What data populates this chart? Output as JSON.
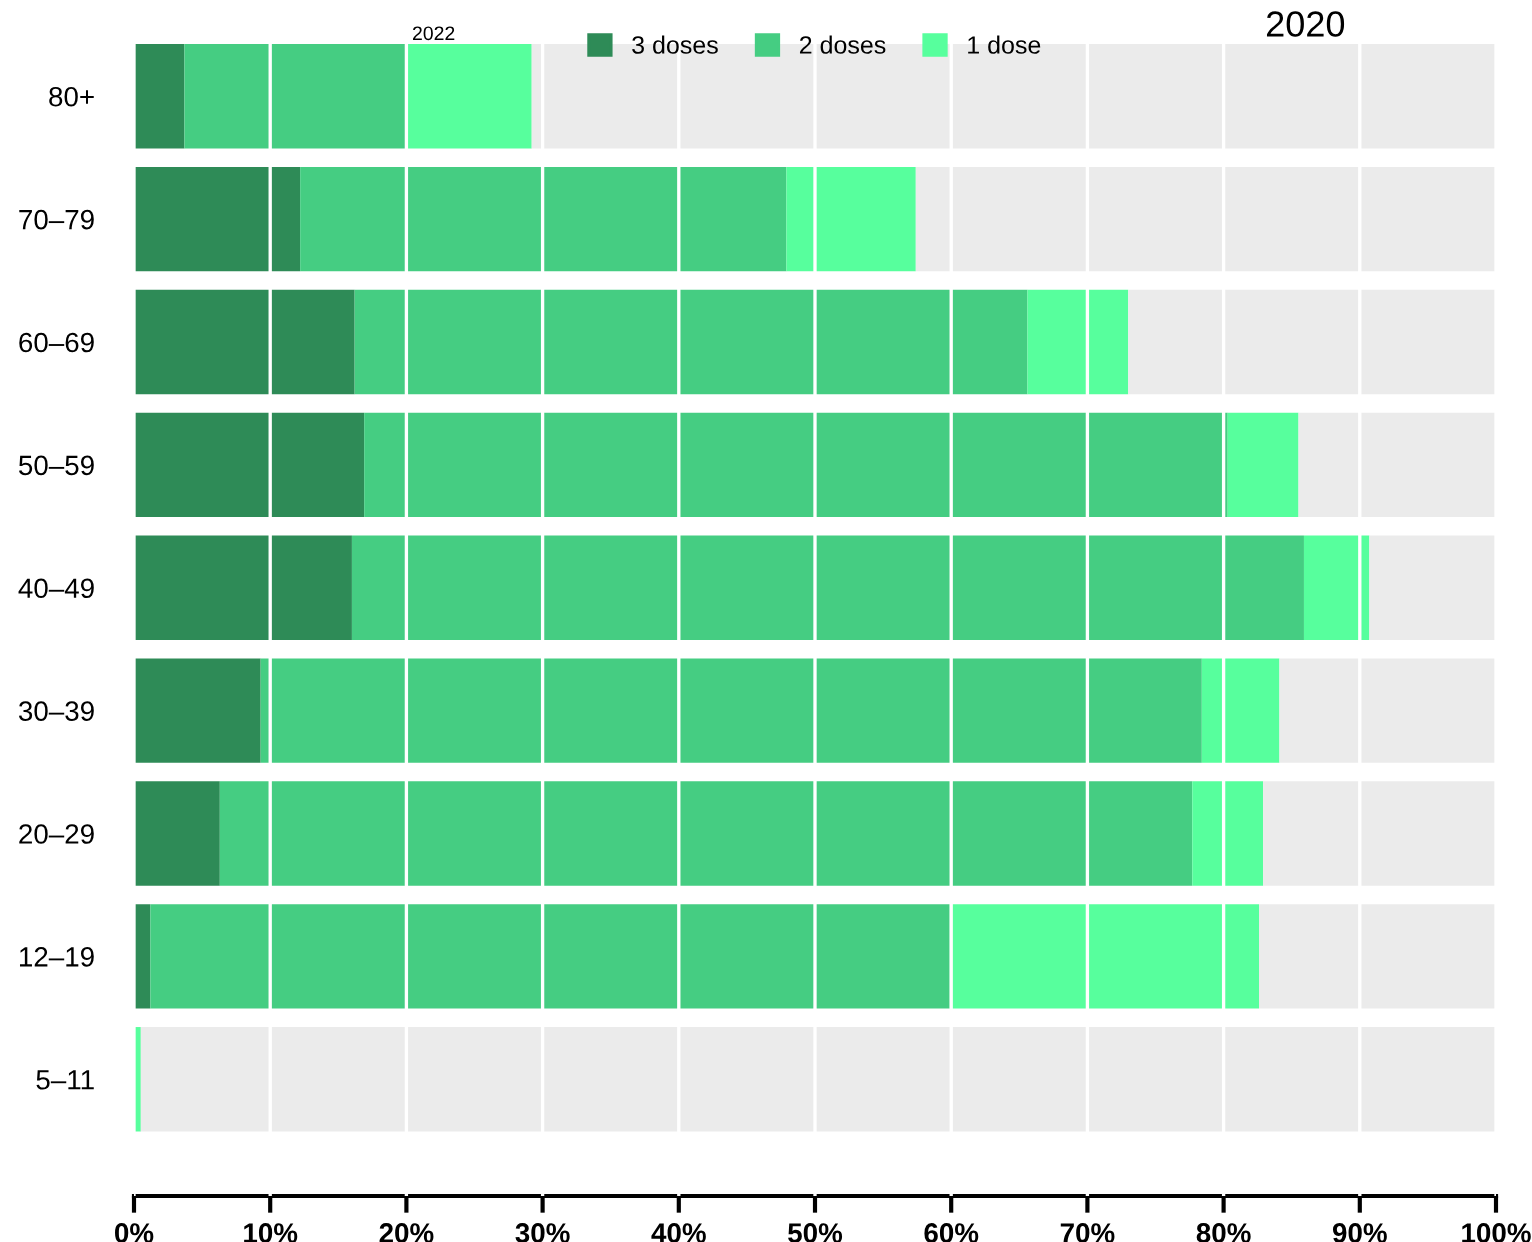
{
  "chart_data": {
    "type": "bar",
    "orientation": "horizontal",
    "stacked": true,
    "categories": [
      "80+",
      "70–79",
      "60–69",
      "50–59",
      "40–49",
      "30–39",
      "20–29",
      "12–19",
      "5–11"
    ],
    "series": [
      {
        "name": "3 doses",
        "color": "#2e8b57",
        "values": [
          3.7,
          12.2,
          16.2,
          16.9,
          16.0,
          9.3,
          6.3,
          1.2,
          0
        ]
      },
      {
        "name": "2 doses",
        "color": "#45cd82",
        "values": [
          16.3,
          35.7,
          49.4,
          63.4,
          69.9,
          69.1,
          71.4,
          58.7,
          0
        ]
      },
      {
        "name": "1 dose",
        "color": "#57ff9d",
        "values": [
          9.2,
          9.5,
          7.4,
          5.2,
          4.8,
          5.7,
          5.2,
          22.7,
          0.5
        ]
      },
      {
        "color": "#ebebeb",
        "values": [
          70.8,
          42.6,
          27.0,
          14.5,
          9.3,
          15.9,
          17.1,
          17.4,
          99.5
        ]
      }
    ],
    "xlim": [
      0,
      100
    ],
    "xticks": [
      {
        "value": 0,
        "label": "0%"
      },
      {
        "value": 10,
        "label": "10%"
      },
      {
        "value": 20,
        "label": "20%"
      },
      {
        "value": 30,
        "label": "30%"
      },
      {
        "value": 40,
        "label": "40%"
      },
      {
        "value": 50,
        "label": "50%"
      },
      {
        "value": 60,
        "label": "60%"
      },
      {
        "value": 70,
        "label": "70%"
      },
      {
        "value": 80,
        "label": "80%"
      },
      {
        "value": 90,
        "label": "90%"
      },
      {
        "value": 100,
        "label": "100%"
      }
    ],
    "grid": "x",
    "legend": "top",
    "annotations": [
      "2022",
      "2020"
    ]
  }
}
